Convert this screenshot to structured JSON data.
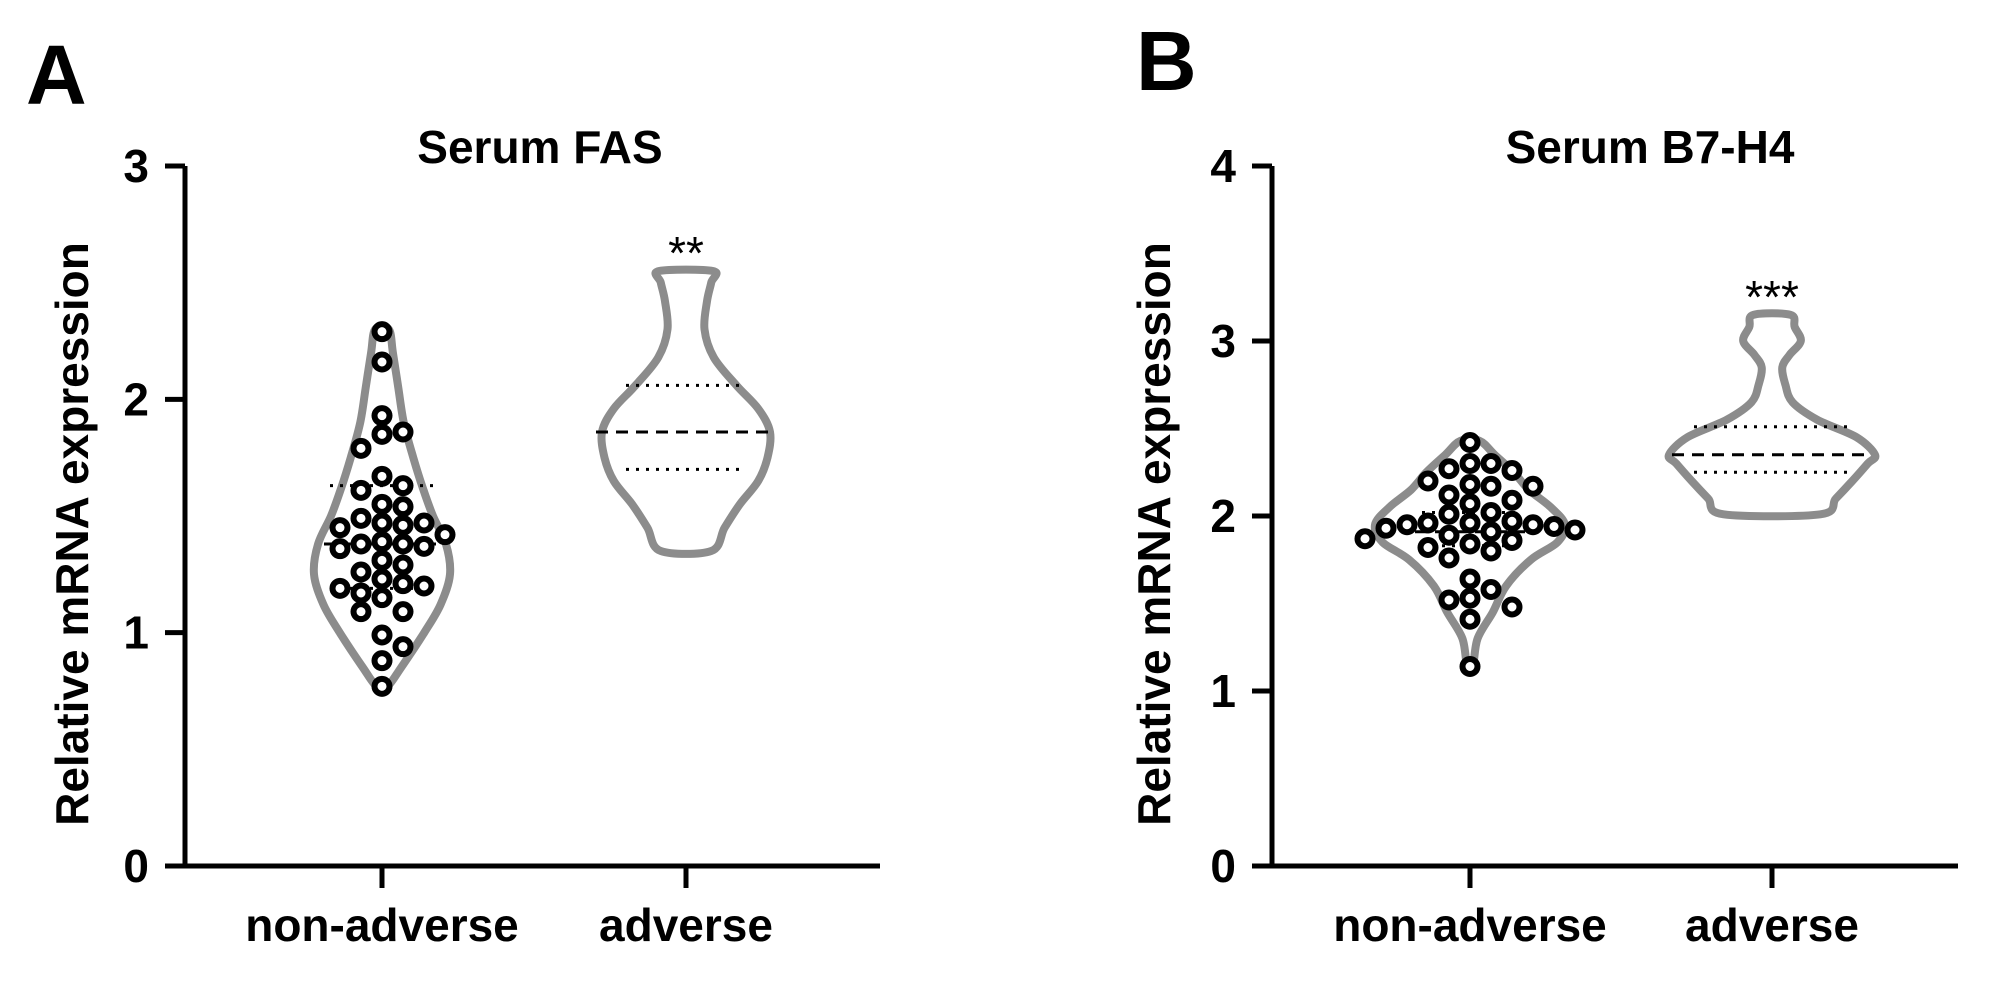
{
  "colors": {
    "violin_stroke": "#8c8c8c",
    "axis": "#000000",
    "point_stroke": "#000000"
  },
  "panels": [
    {
      "letter": "A"
    },
    {
      "letter": "B"
    }
  ],
  "chart_data": [
    {
      "type": "violin",
      "panel": "A",
      "title": "Serum FAS",
      "ylabel": "Relative mRNA expression",
      "xlabel": "",
      "ylim": [
        0,
        3
      ],
      "yticks": [
        "0",
        "1",
        "2",
        "3"
      ],
      "grid": false,
      "categories": [
        "non-adverse",
        "adverse"
      ],
      "groups": [
        {
          "category": "non-adverse",
          "median": 1.38,
          "q1": 1.19,
          "q3": 1.63,
          "min": 0.77,
          "max": 2.3,
          "points_shown": true,
          "values": [
            2.29,
            2.16,
            1.93,
            1.85,
            1.86,
            1.79,
            1.67,
            1.63,
            1.61,
            1.55,
            1.54,
            1.49,
            1.47,
            1.47,
            1.46,
            1.45,
            1.42,
            1.39,
            1.38,
            1.38,
            1.37,
            1.36,
            1.31,
            1.29,
            1.26,
            1.23,
            1.21,
            1.2,
            1.19,
            1.17,
            1.15,
            1.09,
            1.09,
            0.99,
            0.94,
            0.88,
            0.77
          ],
          "density": [
            [
              0.77,
              0.08
            ],
            [
              0.85,
              0.28
            ],
            [
              1.0,
              0.62
            ],
            [
              1.12,
              0.86
            ],
            [
              1.25,
              1.0
            ],
            [
              1.38,
              0.94
            ],
            [
              1.5,
              0.75
            ],
            [
              1.62,
              0.6
            ],
            [
              1.75,
              0.46
            ],
            [
              1.9,
              0.32
            ],
            [
              2.05,
              0.24
            ],
            [
              2.2,
              0.16
            ],
            [
              2.3,
              0.1
            ]
          ]
        },
        {
          "category": "adverse",
          "median": 1.86,
          "q1": 1.7,
          "q3": 2.06,
          "min": 1.35,
          "max": 2.55,
          "points_shown": false,
          "values": [],
          "density": [
            [
              1.35,
              0.3
            ],
            [
              1.45,
              0.46
            ],
            [
              1.55,
              0.64
            ],
            [
              1.65,
              0.86
            ],
            [
              1.75,
              0.97
            ],
            [
              1.86,
              1.0
            ],
            [
              1.96,
              0.86
            ],
            [
              2.06,
              0.6
            ],
            [
              2.18,
              0.33
            ],
            [
              2.3,
              0.22
            ],
            [
              2.42,
              0.25
            ],
            [
              2.5,
              0.3
            ],
            [
              2.55,
              0.32
            ]
          ]
        }
      ],
      "annotations": [
        {
          "category": "adverse",
          "text": "**"
        }
      ]
    },
    {
      "type": "violin",
      "panel": "B",
      "title": "Serum B7-H4",
      "ylabel": "Relative mRNA expression",
      "xlabel": "",
      "ylim": [
        0,
        4
      ],
      "yticks": [
        "0",
        "1",
        "2",
        "3",
        "4"
      ],
      "grid": false,
      "categories": [
        "non-adverse",
        "adverse"
      ],
      "groups": [
        {
          "category": "non-adverse",
          "median": 1.91,
          "q1": 1.83,
          "q3": 2.02,
          "min": 1.14,
          "max": 2.43,
          "points_shown": true,
          "values": [
            2.42,
            2.3,
            2.3,
            2.27,
            2.26,
            2.2,
            2.18,
            2.17,
            2.17,
            2.12,
            2.09,
            2.07,
            2.02,
            2.01,
            1.97,
            1.96,
            1.96,
            1.95,
            1.95,
            1.94,
            1.93,
            1.92,
            1.91,
            1.89,
            1.87,
            1.86,
            1.84,
            1.82,
            1.8,
            1.76,
            1.64,
            1.58,
            1.53,
            1.52,
            1.48,
            1.41,
            1.14
          ],
          "density": [
            [
              1.14,
              0.03
            ],
            [
              1.3,
              0.08
            ],
            [
              1.45,
              0.24
            ],
            [
              1.6,
              0.38
            ],
            [
              1.75,
              0.64
            ],
            [
              1.85,
              0.92
            ],
            [
              1.95,
              1.0
            ],
            [
              2.05,
              0.85
            ],
            [
              2.15,
              0.62
            ],
            [
              2.25,
              0.46
            ],
            [
              2.35,
              0.26
            ],
            [
              2.43,
              0.1
            ]
          ]
        },
        {
          "category": "adverse",
          "median": 2.35,
          "q1": 2.25,
          "q3": 2.51,
          "min": 2.01,
          "max": 3.15,
          "points_shown": false,
          "values": [],
          "density": [
            [
              2.01,
              0.47
            ],
            [
              2.1,
              0.62
            ],
            [
              2.2,
              0.78
            ],
            [
              2.3,
              0.93
            ],
            [
              2.35,
              1.0
            ],
            [
              2.45,
              0.82
            ],
            [
              2.55,
              0.44
            ],
            [
              2.65,
              0.2
            ],
            [
              2.75,
              0.13
            ],
            [
              2.85,
              0.1
            ],
            [
              2.92,
              0.17
            ],
            [
              3.0,
              0.28
            ],
            [
              3.08,
              0.22
            ],
            [
              3.15,
              0.18
            ]
          ]
        }
      ],
      "annotations": [
        {
          "category": "adverse",
          "text": "***"
        }
      ]
    }
  ]
}
